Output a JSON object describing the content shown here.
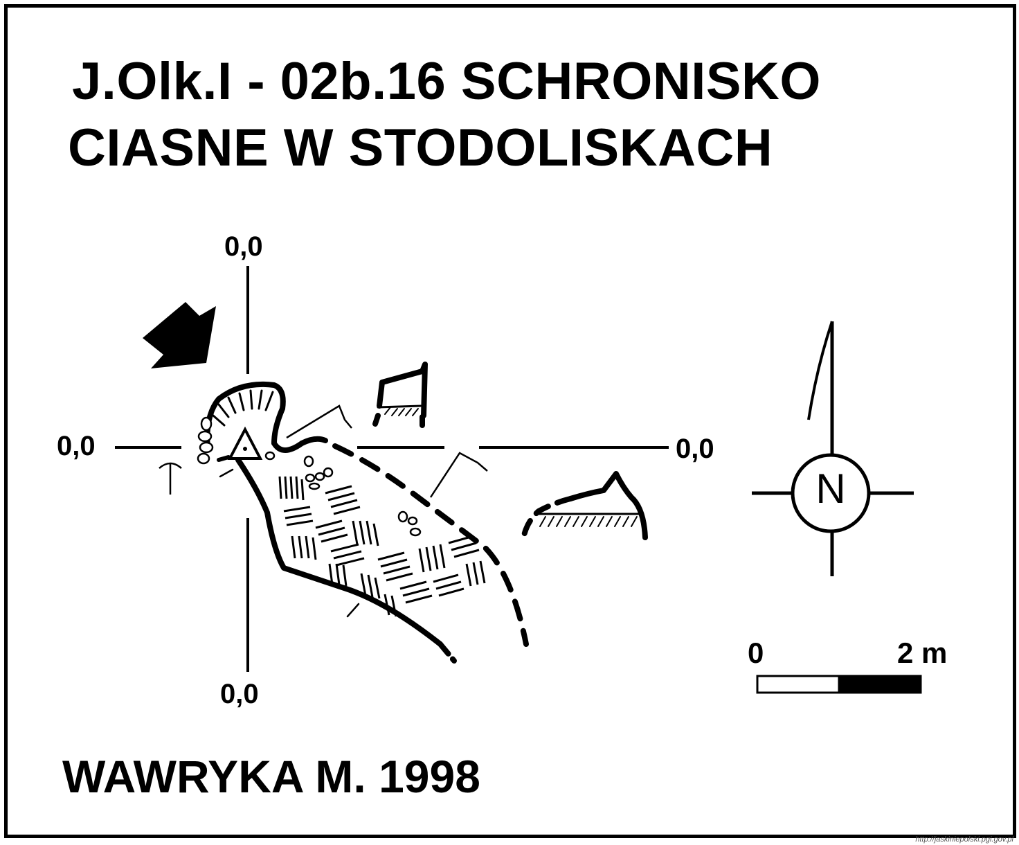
{
  "title": {
    "line1": "J.Olk.I - 02b.16  SCHRONISKO",
    "line2": "CIASNE W STODOLISKACH"
  },
  "coordinates": {
    "top": "0,0",
    "left": "0,0",
    "right": "0,0",
    "bottom": "0,0"
  },
  "north_arrow": {
    "letter": "N"
  },
  "scale_bar": {
    "start_label": "0",
    "end_label": "2 m"
  },
  "author": "WAWRYKA M. 1998",
  "source": "http://jaskiniepolski.pgi.gov.pl",
  "colors": {
    "ink": "#000000",
    "paper": "#ffffff"
  },
  "icons": [
    "entrance-arrow-icon",
    "survey-point-icon",
    "boulder-icon",
    "north-arrow-icon",
    "cross-section-marker-icon"
  ]
}
